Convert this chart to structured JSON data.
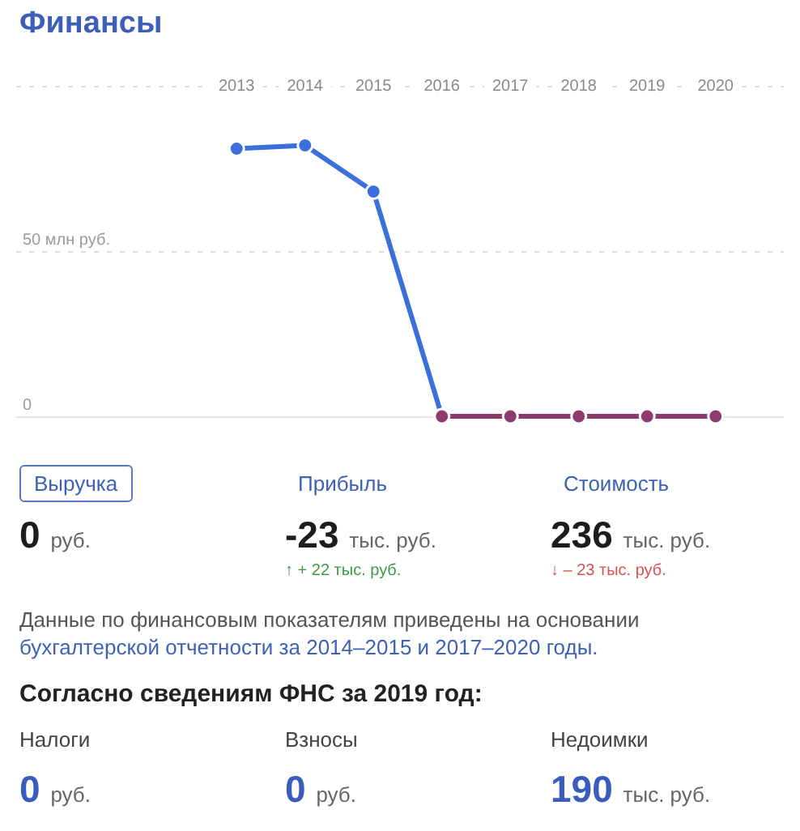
{
  "chart_data": [
    {
      "type": "line",
      "title": "Финансы",
      "categories": [
        "2013",
        "2014",
        "2015",
        "2016",
        "2017",
        "2018",
        "2019",
        "2020"
      ],
      "series": [
        {
          "color": "#3b6fdc",
          "values": [
            81,
            82,
            68,
            0,
            null,
            null,
            null,
            null
          ]
        },
        {
          "color": "#8c3b6c",
          "values": [
            null,
            null,
            null,
            0,
            0,
            0,
            0,
            0
          ]
        }
      ],
      "ylim": [
        0,
        100
      ],
      "yticks": [
        0,
        {
          "value": 50,
          "label": "50 млн руб."
        }
      ],
      "grid": "y",
      "legend": false,
      "marker": "circle"
    },
    {
      "type": "other",
      "annotations": [
        "Выручка",
        "Прибыль",
        "Стоимость",
        "0 руб.",
        "-23 тыс. руб.",
        "236 тыс. руб.",
        "↑ + 22 тыс. руб.",
        "↓ – 23 тыс. руб.",
        "Данные по финансовым показателям приведены на основании",
        "бухгалтерской отчетности за 2014–2015 и 2017–2020 годы.",
        "Согласно сведениям ФНС за 2019 год:",
        "Налоги",
        "Взносы",
        "Недоимки",
        "0 руб.",
        "0 руб.",
        "190 тыс. руб."
      ]
    }
  ]
}
